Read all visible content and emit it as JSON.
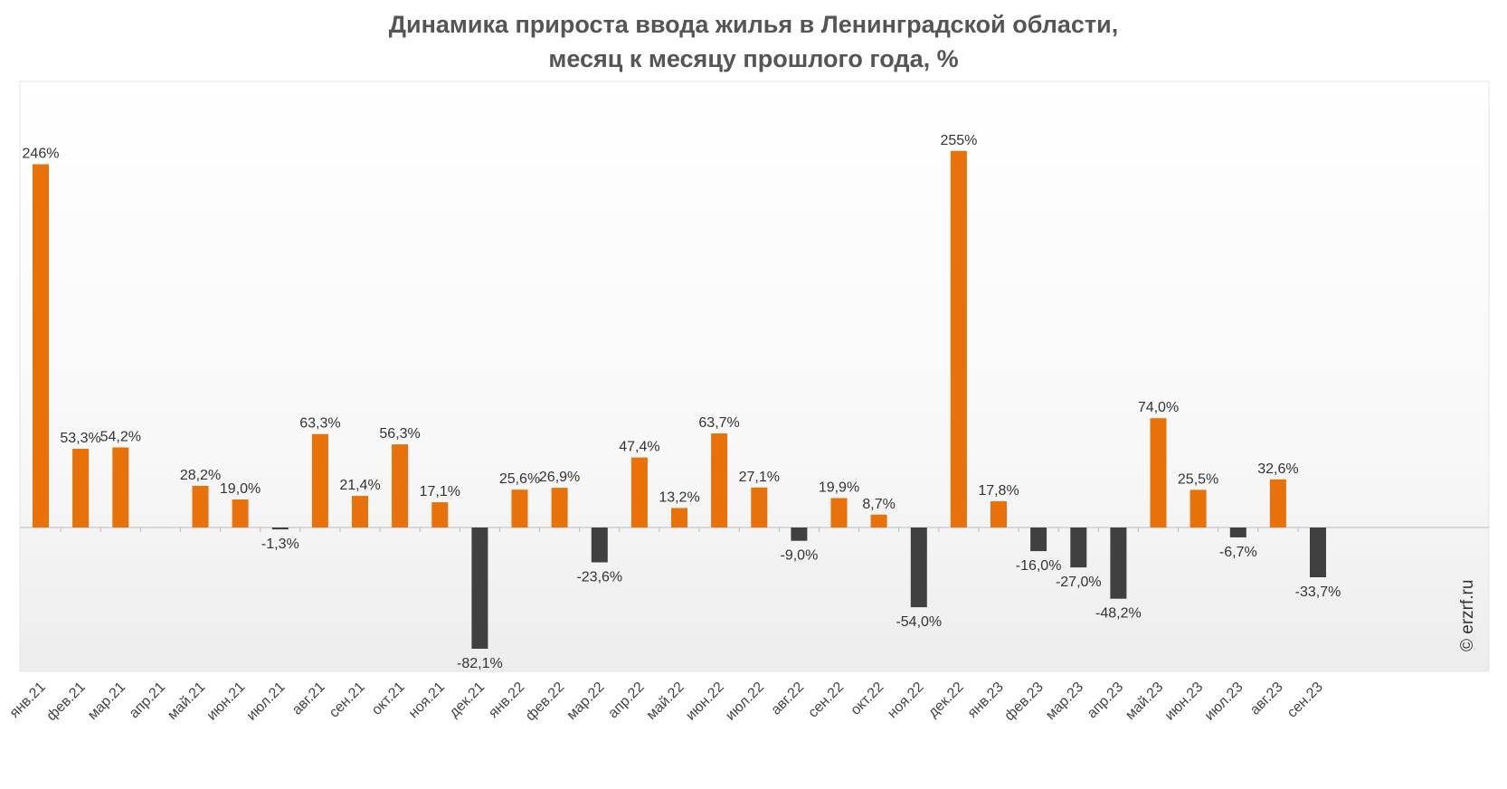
{
  "chart_data": {
    "type": "bar",
    "title_line1": "Динамика прироста ввода жилья в Ленинградской области,",
    "title_line2": "месяц к месяцу прошлого года, %",
    "xlabel": "",
    "ylabel": "",
    "ylim": [
      -95,
      290
    ],
    "grid": false,
    "categories": [
      "янв.21",
      "фев.21",
      "мар.21",
      "апр.21",
      "май.21",
      "июн.21",
      "июл.21",
      "авг.21",
      "сен.21",
      "окт.21",
      "ноя.21",
      "дек.21",
      "янв.22",
      "фев.22",
      "мар.22",
      "апр.22",
      "май.22",
      "июн.22",
      "июл.22",
      "авг.22",
      "сен.22",
      "окт.22",
      "ноя.22",
      "дек.22",
      "янв.23",
      "фев.23",
      "мар.23",
      "апр.23",
      "май.23",
      "июн.23",
      "июл.23",
      "авг.23",
      "сен.23"
    ],
    "values": [
      246,
      53.3,
      54.2,
      null,
      28.2,
      19.0,
      -1.3,
      63.3,
      21.4,
      56.3,
      17.1,
      -82.1,
      25.6,
      26.9,
      -23.6,
      47.4,
      13.2,
      63.7,
      27.1,
      -9.0,
      19.9,
      8.7,
      -54.0,
      255,
      17.8,
      -16.0,
      -27.0,
      -48.2,
      74.0,
      25.5,
      -6.7,
      32.6,
      -33.7
    ],
    "labels": [
      "246%",
      "53,3%",
      "54,2%",
      "",
      "28,2%",
      "19,0%",
      "-1,3%",
      "63,3%",
      "21,4%",
      "56,3%",
      "17,1%",
      "-82,1%",
      "25,6%",
      "26,9%",
      "-23,6%",
      "47,4%",
      "13,2%",
      "63,7%",
      "27,1%",
      "-9,0%",
      "19,9%",
      "8,7%",
      "-54,0%",
      "255%",
      "17,8%",
      "-16,0%",
      "-27,0%",
      "-48,2%",
      "74,0%",
      "25,5%",
      "-6,7%",
      "32,6%",
      "-33,7%"
    ],
    "colors": {
      "positive": "#E8710A",
      "negative": "#404040",
      "label": "#333333",
      "axis_label": "#444444",
      "zero_line": "#BBBBBB"
    }
  },
  "watermark": "© erzrf.ru"
}
